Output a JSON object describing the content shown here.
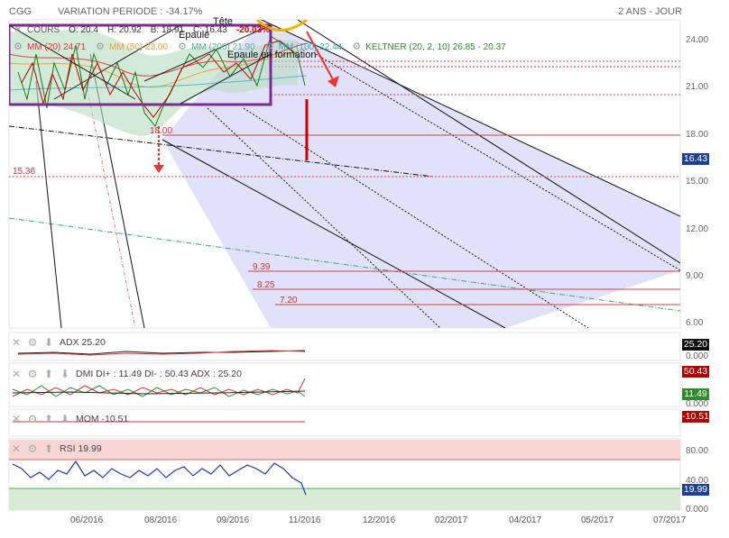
{
  "header": {
    "symbol": "CGG",
    "variation": "VARIATION PERIODE : -34.17%",
    "range": "2 ANS - JOUR"
  },
  "legend": {
    "cours_label": "COURS",
    "o": "O: 20.4",
    "h": "H: 20.92",
    "b": "B: 18.91",
    "c": "C: 16.43",
    "change": "-20.03%",
    "mm20": "MM (20)  24.71",
    "mm50": "MM (50)  23.00",
    "mm200": "MM (200)  21.90",
    "mm100": "MM (100)  22.44",
    "keltner": "KELTNER (20, 2, 10)  26.85 - 20.37"
  },
  "annotations": {
    "tete": "Tête",
    "epaule_left": "Epaule",
    "epaule_right": "Epaule en formation",
    "level_1536": "15.36",
    "level_939": "9.39",
    "level_825": "8.25",
    "level_720": "7.20",
    "low_label": "18.00"
  },
  "indicators": {
    "adx": {
      "label": "ADX",
      "value": "25.20",
      "badge": "25.20",
      "zero": "0.000"
    },
    "dmi": {
      "label": "DMI",
      "text": "DI+ : 11.49  DI- : 50.43  ADX : 25.20",
      "badge_red": "50.43",
      "badge_green": "11.49",
      "zero": "0.000"
    },
    "mom": {
      "label": "MOM",
      "value": "-10.51",
      "badge": "-10.51"
    },
    "rsi": {
      "label": "RSI",
      "value": "19.99",
      "badge": "19.99",
      "tick80": "80.00",
      "tick40": "40.00",
      "tick0": "0.000"
    }
  },
  "price_badge": "16.43",
  "colors": {
    "down": "#cc0000",
    "up": "#2e8b2e",
    "channel": "#d9d9f7",
    "rsi_band": "#f9d6d6",
    "rsi_low": "#d8ecd5",
    "badge_black": "#111111",
    "badge_red": "#b00000",
    "badge_green": "#2e8b2e",
    "badge_blue": "#1f3f8f"
  },
  "chart_data": {
    "type": "line",
    "title": "",
    "xlabel": "",
    "ylabel": "",
    "ylim": [
      6,
      25
    ],
    "x_ticks": [
      "06/2016",
      "08/2016",
      "09/2016",
      "11/2016",
      "12/2016",
      "02/2017",
      "04/2017",
      "05/2017",
      "07/2017"
    ],
    "y_ticks": [
      "24.00",
      "21.00",
      "18.00",
      "15.00",
      "12.00",
      "9.00",
      "6.00"
    ],
    "series": [
      {
        "name": "COURS",
        "values": [
          22.5,
          21.2,
          19.8,
          23.0,
          20.5,
          21.8,
          19.0,
          22.2,
          20.7,
          18.0,
          20.8,
          22.6,
          21.4,
          23.2,
          21.9,
          22.8,
          21.0,
          23.5,
          22.0,
          20.4,
          16.43
        ]
      },
      {
        "name": "MM (20)",
        "values": [
          22.0,
          21.6,
          21.3,
          21.5,
          21.2,
          21.0,
          20.8,
          21.0,
          20.9,
          20.3,
          20.4,
          21.1,
          21.5,
          22.0,
          22.2,
          22.4,
          22.3,
          22.7,
          22.8,
          22.4,
          21.5
        ]
      }
    ]
  }
}
